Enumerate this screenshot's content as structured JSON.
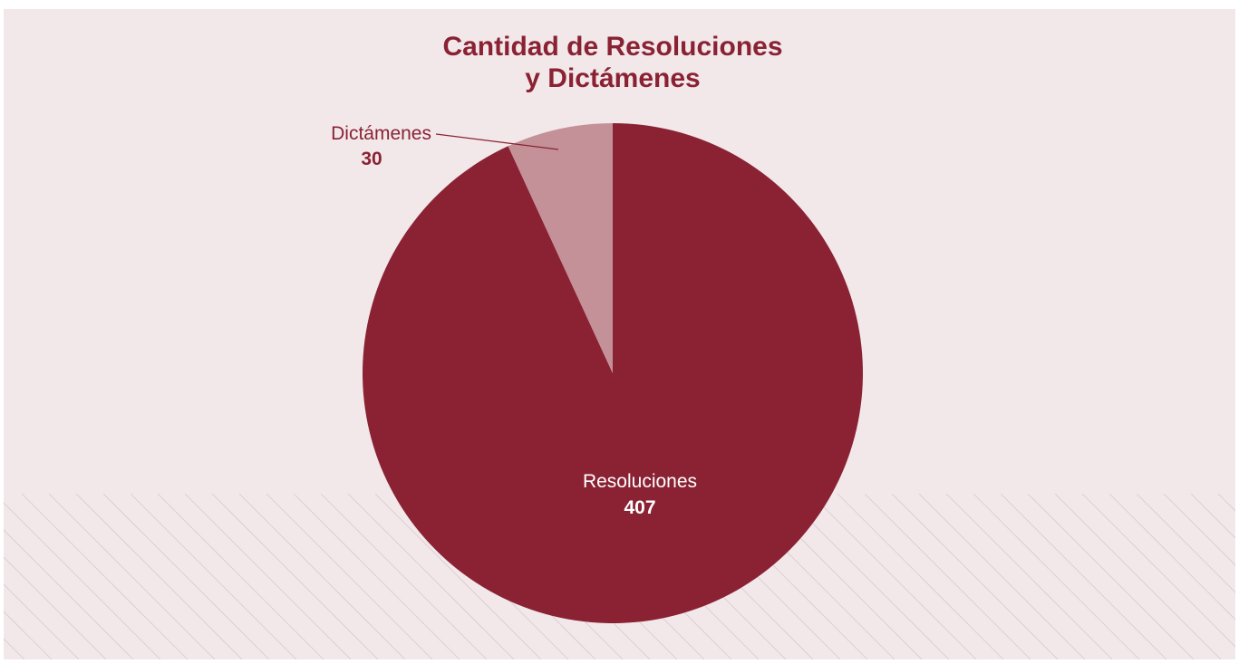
{
  "colors": {
    "background": "#f2e8ea",
    "primary": "#8a2233",
    "secondary": "#c49198",
    "hatch": "#dccfd3",
    "label_on_light": "#8a2233",
    "label_on_dark": "#ffffff"
  },
  "chart_data": {
    "type": "pie",
    "title_lines": [
      "Cantidad de Resoluciones",
      "y Dictámenes"
    ],
    "slices": [
      {
        "label": "Resoluciones",
        "value": 407,
        "color": "#8a2233"
      },
      {
        "label": "Dictámenes",
        "value": 30,
        "color": "#c49198"
      }
    ],
    "start_angle_deg": 0,
    "direction": "clockwise",
    "legend": "none"
  }
}
